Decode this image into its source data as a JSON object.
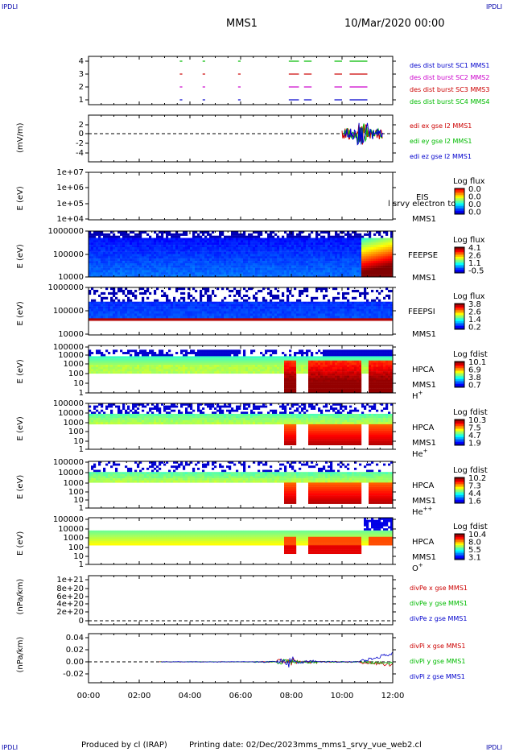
{
  "corner_marks": [
    "IPDLI",
    "IPDLI",
    "IPDLI",
    "IPDLI"
  ],
  "header": {
    "mission": "MMS1",
    "date": "10/Mar/2020 00:00"
  },
  "footer": {
    "producer": "Produced by cl (IRAP)",
    "printing": "Printing date: 02/Dec/2023",
    "file": "mms_mms1_srvy_vue_web2.cl"
  },
  "time_axis": {
    "ticks": [
      "00:00",
      "02:00",
      "04:00",
      "06:00",
      "08:00",
      "10:00",
      "12:00"
    ],
    "range_hours": [
      0,
      12
    ]
  },
  "chart_data": [
    {
      "id": "burst",
      "type": "line",
      "yticks": [
        "4",
        "3",
        "2",
        "1"
      ],
      "ylim": [
        0.5,
        4.5
      ],
      "series": [
        {
          "name": "des dist burst SC1 MMS1",
          "color": "#0000cc",
          "y": 1,
          "segments": [
            [
              3.6,
              3.7
            ],
            [
              4.5,
              4.6
            ],
            [
              5.9,
              6.0
            ],
            [
              7.9,
              8.3
            ],
            [
              8.5,
              8.8
            ],
            [
              9.7,
              10.0
            ],
            [
              10.3,
              11.0
            ]
          ]
        },
        {
          "name": "des dist burst SC2 MMS2",
          "color": "#cc00cc",
          "y": 2,
          "segments": [
            [
              3.6,
              3.7
            ],
            [
              4.5,
              4.6
            ],
            [
              5.9,
              6.0
            ],
            [
              7.9,
              8.3
            ],
            [
              8.5,
              8.8
            ],
            [
              9.7,
              10.0
            ],
            [
              10.3,
              11.0
            ]
          ]
        },
        {
          "name": "des dist burst SC3 MMS3",
          "color": "#cc0000",
          "y": 3,
          "segments": [
            [
              3.6,
              3.7
            ],
            [
              4.5,
              4.6
            ],
            [
              5.9,
              6.0
            ],
            [
              7.9,
              8.3
            ],
            [
              8.5,
              8.8
            ],
            [
              9.7,
              10.0
            ],
            [
              10.3,
              11.0
            ]
          ]
        },
        {
          "name": "des dist burst SC4 MMS4",
          "color": "#00bb00",
          "y": 4,
          "segments": [
            [
              3.6,
              3.7
            ],
            [
              4.5,
              4.6
            ],
            [
              5.9,
              6.0
            ],
            [
              7.9,
              8.3
            ],
            [
              8.5,
              8.8
            ],
            [
              9.7,
              10.0
            ],
            [
              10.3,
              11.0
            ]
          ]
        }
      ]
    },
    {
      "id": "edi",
      "type": "line",
      "ylabel": "(mV/m)",
      "yticks": [
        "2",
        "0",
        "-2",
        "-4"
      ],
      "ylim": [
        -5,
        3
      ],
      "series": [
        {
          "name": "edi ex gse l2 MMS1",
          "color": "#cc0000"
        },
        {
          "name": "edi ey gse l2 MMS1",
          "color": "#00bb00"
        },
        {
          "name": "edi ez gse l2 MMS1",
          "color": "#0000cc"
        }
      ],
      "active_range_hours": [
        10.0,
        11.6
      ]
    },
    {
      "id": "eis",
      "type": "heatmap",
      "ylabel": "E (eV)",
      "yticks": [
        "1e+07",
        "1e+06",
        "1e+05",
        "1e+04"
      ],
      "instrument": "EIS",
      "spacecraft": "MMS1",
      "overlay_label": "l srvy electron to",
      "colorbar": {
        "title": "Log flux",
        "ticks": [
          "0.0",
          "0.0",
          "0.0",
          "0.0"
        ]
      }
    },
    {
      "id": "feepse",
      "type": "heatmap",
      "ylabel": "E (eV)",
      "yticks": [
        "1000000",
        "100000",
        "10000"
      ],
      "instrument": "FEEPSE",
      "spacecraft": "MMS1",
      "colorbar": {
        "title": "Log flux",
        "ticks": [
          "4.1",
          "2.6",
          "1.1",
          "-0.5"
        ]
      }
    },
    {
      "id": "feepsi",
      "type": "heatmap",
      "ylabel": "E (eV)",
      "yticks": [
        "1000000",
        "100000",
        "10000"
      ],
      "instrument": "FEEPSI",
      "spacecraft": "MMS1",
      "colorbar": {
        "title": "Log flux",
        "ticks": [
          "3.8",
          "2.6",
          "1.4",
          "0.2"
        ]
      }
    },
    {
      "id": "hpca_h",
      "type": "heatmap",
      "ylabel": "E (eV)",
      "yticks": [
        "100000",
        "10000",
        "1000",
        "100",
        "10",
        "1"
      ],
      "instrument": "HPCA",
      "spacecraft": "MMS1",
      "species": "H",
      "charge": "+",
      "colorbar": {
        "title": "Log fdist",
        "ticks": [
          "10.1",
          "6.9",
          "3.8",
          "0.7"
        ]
      }
    },
    {
      "id": "hpca_he",
      "type": "heatmap",
      "ylabel": "E (eV)",
      "yticks": [
        "100000",
        "10000",
        "1000",
        "100",
        "10",
        "1"
      ],
      "instrument": "HPCA",
      "spacecraft": "MMS1",
      "species": "He",
      "charge": "+",
      "colorbar": {
        "title": "Log fdist",
        "ticks": [
          "10.3",
          "7.5",
          "4.7",
          "1.9"
        ]
      }
    },
    {
      "id": "hpca_hepp",
      "type": "heatmap",
      "ylabel": "E (eV)",
      "yticks": [
        "100000",
        "10000",
        "1000",
        "100",
        "10",
        "1"
      ],
      "instrument": "HPCA",
      "spacecraft": "MMS1",
      "species": "He",
      "charge": "++",
      "colorbar": {
        "title": "Log fdist",
        "ticks": [
          "10.2",
          "7.3",
          "4.4",
          "1.6"
        ]
      }
    },
    {
      "id": "hpca_o",
      "type": "heatmap",
      "ylabel": "E (eV)",
      "yticks": [
        "100000",
        "10000",
        "1000",
        "100",
        "10",
        "1"
      ],
      "instrument": "HPCA",
      "spacecraft": "MMS1",
      "species": "O",
      "charge": "+",
      "colorbar": {
        "title": "Log fdist",
        "ticks": [
          "10.4",
          "8.0",
          "5.5",
          "3.1"
        ]
      }
    },
    {
      "id": "divpe",
      "type": "line",
      "ylabel": "(nPa/km)",
      "yticks": [
        "1e+21",
        "8e+20",
        "6e+20",
        "4e+20",
        "2e+20",
        "0"
      ],
      "ylim": [
        -4e+19,
        1.08e+21
      ],
      "series": [
        {
          "name": "divPe x gse MMS1",
          "color": "#cc0000"
        },
        {
          "name": "divPe y gse MMS1",
          "color": "#00bb00"
        },
        {
          "name": "divPe z gse MMS1",
          "color": "#0000cc"
        }
      ]
    },
    {
      "id": "divpi",
      "type": "line",
      "ylabel": "(nPa/km)",
      "yticks": [
        "0.04",
        "0.02",
        "0.00",
        "-0.02"
      ],
      "ylim": [
        -0.032,
        0.048
      ],
      "series": [
        {
          "name": "divPi x gse MMS1",
          "color": "#cc0000"
        },
        {
          "name": "divPi y gse MMS1",
          "color": "#00bb00"
        },
        {
          "name": "divPi z gse MMS1",
          "color": "#0000cc"
        }
      ]
    }
  ]
}
